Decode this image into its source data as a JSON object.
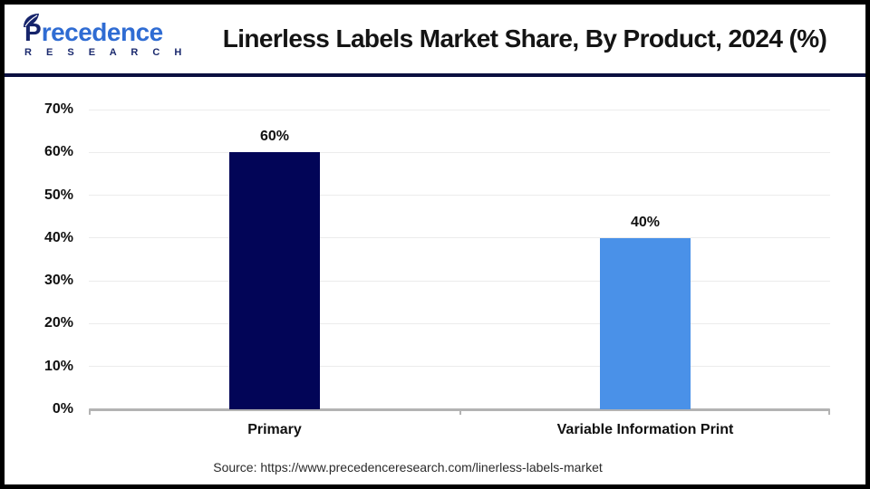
{
  "header": {
    "title": "Linerless Labels Market Share, By Product, 2024 (%)"
  },
  "logo": {
    "name_first_letter": "P",
    "name_rest": "recedence",
    "sub": "R E S E A R C H"
  },
  "footer": {
    "source": "Source: https://www.precedenceresearch.com/linerless-labels-market"
  },
  "chart_data": {
    "type": "bar",
    "title": "Linerless Labels Market Share, By Product, 2024 (%)",
    "categories": [
      "Primary",
      "Variable Information Print"
    ],
    "values": [
      60,
      40
    ],
    "value_labels": [
      "60%",
      "40%"
    ],
    "bar_colors": [
      "#020557",
      "#4a91e8"
    ],
    "xlabel": "",
    "ylabel": "",
    "ylim": [
      0,
      70
    ],
    "yticks": [
      0,
      10,
      20,
      30,
      40,
      50,
      60,
      70
    ],
    "ytick_labels": [
      "0%",
      "10%",
      "20%",
      "30%",
      "40%",
      "50%",
      "60%",
      "70%"
    ],
    "grid": "horizontal",
    "legend": false
  },
  "colors": {
    "accent_navy": "#0b1040",
    "logo_navy": "#16246b",
    "logo_blue": "#2f6cd3",
    "grid": "#ececec",
    "axis": "#b3b3b3",
    "text": "#111111"
  }
}
